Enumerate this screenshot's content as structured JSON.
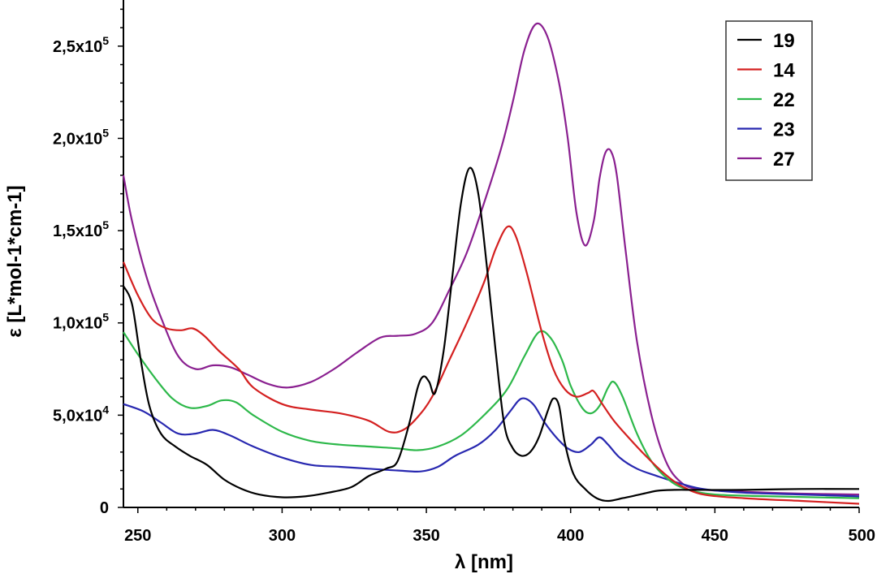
{
  "chart_data": {
    "type": "line",
    "title": "",
    "xlabel": "λ [nm]",
    "ylabel": "ε [L*mol-1*cm-1]",
    "xlim": [
      245,
      500
    ],
    "ylim": [
      0,
      275000
    ],
    "grid": false,
    "legend_position": "top-right",
    "x_ticks": [
      {
        "value": 250,
        "label": "250"
      },
      {
        "value": 300,
        "label": "300"
      },
      {
        "value": 350,
        "label": "350"
      },
      {
        "value": 400,
        "label": "400"
      },
      {
        "value": 450,
        "label": "450"
      },
      {
        "value": 500,
        "label": "500"
      }
    ],
    "y_ticks": [
      {
        "value": 0,
        "label": "0"
      },
      {
        "value": 50000,
        "label": "5,0x10",
        "exp": "4"
      },
      {
        "value": 100000,
        "label": "1,0x10",
        "exp": "5"
      },
      {
        "value": 150000,
        "label": "1,5x10",
        "exp": "5"
      },
      {
        "value": 200000,
        "label": "2,0x10",
        "exp": "5"
      },
      {
        "value": 250000,
        "label": "2,5x10",
        "exp": "5"
      }
    ],
    "series": [
      {
        "name": "19",
        "color": "#000000",
        "points": [
          [
            245,
            120000
          ],
          [
            248,
            110000
          ],
          [
            251,
            80000
          ],
          [
            254,
            55000
          ],
          [
            258,
            40000
          ],
          [
            263,
            33000
          ],
          [
            268,
            28000
          ],
          [
            274,
            23000
          ],
          [
            280,
            15000
          ],
          [
            286,
            10000
          ],
          [
            292,
            7000
          ],
          [
            300,
            5500
          ],
          [
            308,
            6000
          ],
          [
            316,
            8000
          ],
          [
            324,
            11000
          ],
          [
            330,
            17000
          ],
          [
            336,
            21000
          ],
          [
            340,
            25000
          ],
          [
            344,
            45000
          ],
          [
            347,
            65000
          ],
          [
            349,
            71000
          ],
          [
            351,
            68000
          ],
          [
            353,
            62000
          ],
          [
            356,
            85000
          ],
          [
            359,
            125000
          ],
          [
            362,
            165000
          ],
          [
            365,
            184000
          ],
          [
            368,
            170000
          ],
          [
            371,
            130000
          ],
          [
            374,
            85000
          ],
          [
            377,
            45000
          ],
          [
            380,
            32000
          ],
          [
            383,
            28000
          ],
          [
            386,
            30000
          ],
          [
            389,
            38000
          ],
          [
            392,
            52000
          ],
          [
            394,
            59000
          ],
          [
            396,
            55000
          ],
          [
            398,
            35000
          ],
          [
            401,
            18000
          ],
          [
            405,
            10000
          ],
          [
            409,
            5000
          ],
          [
            413,
            3500
          ],
          [
            418,
            5000
          ],
          [
            424,
            7000
          ],
          [
            430,
            9000
          ],
          [
            436,
            9500
          ],
          [
            444,
            9500
          ],
          [
            460,
            9500
          ],
          [
            480,
            10000
          ],
          [
            500,
            10000
          ]
        ]
      },
      {
        "name": "14",
        "color": "#d42020",
        "points": [
          [
            245,
            133000
          ],
          [
            250,
            115000
          ],
          [
            255,
            102000
          ],
          [
            260,
            97000
          ],
          [
            265,
            96000
          ],
          [
            269,
            97000
          ],
          [
            273,
            93000
          ],
          [
            278,
            85000
          ],
          [
            285,
            75000
          ],
          [
            290,
            65000
          ],
          [
            300,
            56000
          ],
          [
            310,
            53000
          ],
          [
            320,
            51000
          ],
          [
            330,
            47000
          ],
          [
            337,
            41000
          ],
          [
            342,
            42000
          ],
          [
            347,
            49000
          ],
          [
            352,
            60000
          ],
          [
            358,
            80000
          ],
          [
            364,
            100000
          ],
          [
            370,
            122000
          ],
          [
            374,
            140000
          ],
          [
            378,
            152000
          ],
          [
            381,
            147000
          ],
          [
            385,
            126000
          ],
          [
            390,
            95000
          ],
          [
            394,
            75000
          ],
          [
            398,
            64000
          ],
          [
            402,
            60000
          ],
          [
            406,
            62000
          ],
          [
            408,
            63000
          ],
          [
            411,
            56000
          ],
          [
            415,
            47000
          ],
          [
            420,
            38000
          ],
          [
            426,
            28000
          ],
          [
            432,
            19000
          ],
          [
            438,
            12000
          ],
          [
            446,
            7000
          ],
          [
            460,
            5000
          ],
          [
            480,
            3500
          ],
          [
            500,
            2000
          ]
        ]
      },
      {
        "name": "22",
        "color": "#2db84a",
        "points": [
          [
            245,
            95000
          ],
          [
            250,
            83000
          ],
          [
            256,
            70000
          ],
          [
            262,
            59000
          ],
          [
            268,
            54000
          ],
          [
            274,
            55000
          ],
          [
            279,
            58000
          ],
          [
            284,
            57000
          ],
          [
            290,
            50000
          ],
          [
            300,
            41000
          ],
          [
            310,
            36000
          ],
          [
            320,
            34000
          ],
          [
            330,
            33000
          ],
          [
            340,
            32000
          ],
          [
            347,
            31000
          ],
          [
            354,
            33000
          ],
          [
            362,
            39000
          ],
          [
            370,
            50000
          ],
          [
            378,
            64000
          ],
          [
            384,
            82000
          ],
          [
            389,
            95000
          ],
          [
            393,
            92000
          ],
          [
            397,
            80000
          ],
          [
            400,
            66000
          ],
          [
            404,
            54000
          ],
          [
            407,
            51000
          ],
          [
            410,
            55000
          ],
          [
            413,
            65000
          ],
          [
            415,
            68000
          ],
          [
            418,
            60000
          ],
          [
            423,
            40000
          ],
          [
            428,
            25000
          ],
          [
            434,
            15000
          ],
          [
            440,
            10000
          ],
          [
            450,
            7000
          ],
          [
            470,
            6000
          ],
          [
            500,
            5000
          ]
        ]
      },
      {
        "name": "23",
        "color": "#2828b0",
        "points": [
          [
            245,
            56000
          ],
          [
            252,
            52000
          ],
          [
            258,
            46000
          ],
          [
            264,
            40000
          ],
          [
            270,
            40000
          ],
          [
            276,
            42000
          ],
          [
            282,
            39000
          ],
          [
            290,
            33000
          ],
          [
            300,
            27000
          ],
          [
            310,
            23000
          ],
          [
            320,
            22000
          ],
          [
            330,
            21000
          ],
          [
            340,
            20000
          ],
          [
            348,
            19500
          ],
          [
            354,
            22000
          ],
          [
            360,
            28000
          ],
          [
            368,
            34000
          ],
          [
            374,
            42000
          ],
          [
            379,
            52000
          ],
          [
            383,
            59000
          ],
          [
            387,
            56000
          ],
          [
            391,
            46000
          ],
          [
            395,
            38000
          ],
          [
            399,
            32000
          ],
          [
            403,
            30000
          ],
          [
            407,
            34000
          ],
          [
            410,
            38000
          ],
          [
            413,
            34000
          ],
          [
            417,
            27000
          ],
          [
            423,
            21000
          ],
          [
            430,
            17000
          ],
          [
            438,
            13000
          ],
          [
            446,
            10000
          ],
          [
            460,
            8000
          ],
          [
            480,
            7000
          ],
          [
            500,
            6000
          ]
        ]
      },
      {
        "name": "27",
        "color": "#8a2090",
        "points": [
          [
            245,
            180000
          ],
          [
            248,
            155000
          ],
          [
            253,
            125000
          ],
          [
            258,
            103000
          ],
          [
            264,
            82000
          ],
          [
            270,
            75000
          ],
          [
            276,
            77000
          ],
          [
            282,
            76000
          ],
          [
            288,
            72000
          ],
          [
            295,
            67000
          ],
          [
            302,
            65000
          ],
          [
            310,
            68000
          ],
          [
            318,
            75000
          ],
          [
            326,
            84000
          ],
          [
            334,
            92000
          ],
          [
            340,
            93000
          ],
          [
            346,
            94000
          ],
          [
            352,
            100000
          ],
          [
            358,
            118000
          ],
          [
            364,
            138000
          ],
          [
            370,
            165000
          ],
          [
            376,
            195000
          ],
          [
            380,
            220000
          ],
          [
            384,
            248000
          ],
          [
            388,
            262000
          ],
          [
            392,
            255000
          ],
          [
            396,
            230000
          ],
          [
            399,
            200000
          ],
          [
            402,
            160000
          ],
          [
            405,
            142000
          ],
          [
            408,
            155000
          ],
          [
            410,
            178000
          ],
          [
            412,
            192000
          ],
          [
            414,
            193000
          ],
          [
            416,
            180000
          ],
          [
            419,
            140000
          ],
          [
            423,
            90000
          ],
          [
            428,
            50000
          ],
          [
            433,
            25000
          ],
          [
            438,
            14000
          ],
          [
            444,
            10000
          ],
          [
            460,
            8500
          ],
          [
            480,
            7500
          ],
          [
            500,
            7000
          ]
        ]
      }
    ]
  }
}
